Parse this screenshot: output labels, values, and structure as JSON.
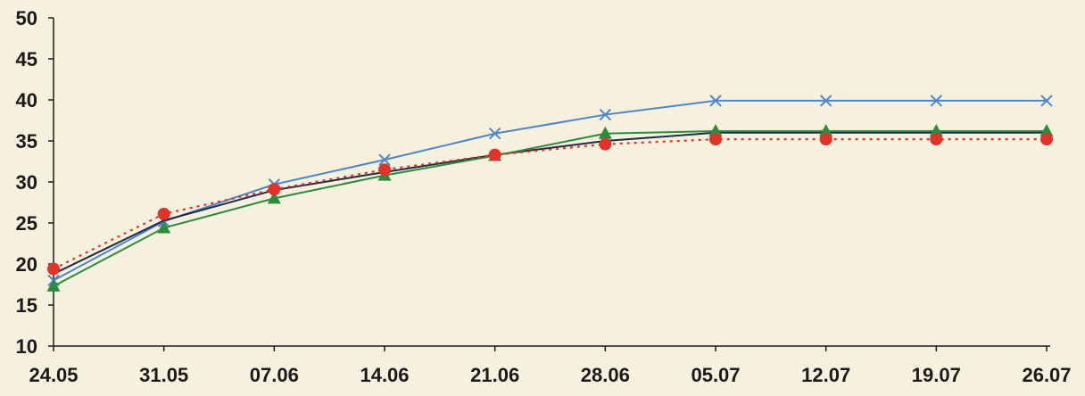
{
  "chart_data": {
    "type": "line",
    "title": "",
    "xlabel": "",
    "ylabel": "",
    "categories": [
      "24.05",
      "31.05",
      "07.06",
      "14.06",
      "21.06",
      "28.06",
      "05.07",
      "12.07",
      "19.07",
      "26.07"
    ],
    "ylim": [
      10,
      50
    ],
    "yticks": [
      10,
      15,
      20,
      25,
      30,
      35,
      40,
      45,
      50
    ],
    "grid": false,
    "legend": "none",
    "series": [
      {
        "color": "#4f86c6",
        "marker": "x",
        "line_style": "solid",
        "values": [
          18.0,
          25.2,
          29.7,
          32.7,
          35.9,
          38.2,
          39.9,
          39.9,
          39.9,
          39.9
        ]
      },
      {
        "color": "#1f2a44",
        "marker": "none",
        "line_style": "solid",
        "values": [
          18.8,
          25.3,
          29.0,
          31.2,
          33.3,
          35.0,
          36.0,
          36.0,
          36.0,
          36.0
        ]
      },
      {
        "color": "#2e8b3e",
        "marker": "triangle",
        "line_style": "solid",
        "values": [
          17.3,
          24.4,
          28.0,
          30.8,
          33.2,
          35.9,
          36.2,
          36.2,
          36.2,
          36.2
        ]
      },
      {
        "color": "#e0342a",
        "marker": "circle",
        "line_style": "dotted",
        "values": [
          19.4,
          26.1,
          29.1,
          31.5,
          33.3,
          34.6,
          35.2,
          35.2,
          35.2,
          35.2
        ]
      }
    ]
  }
}
